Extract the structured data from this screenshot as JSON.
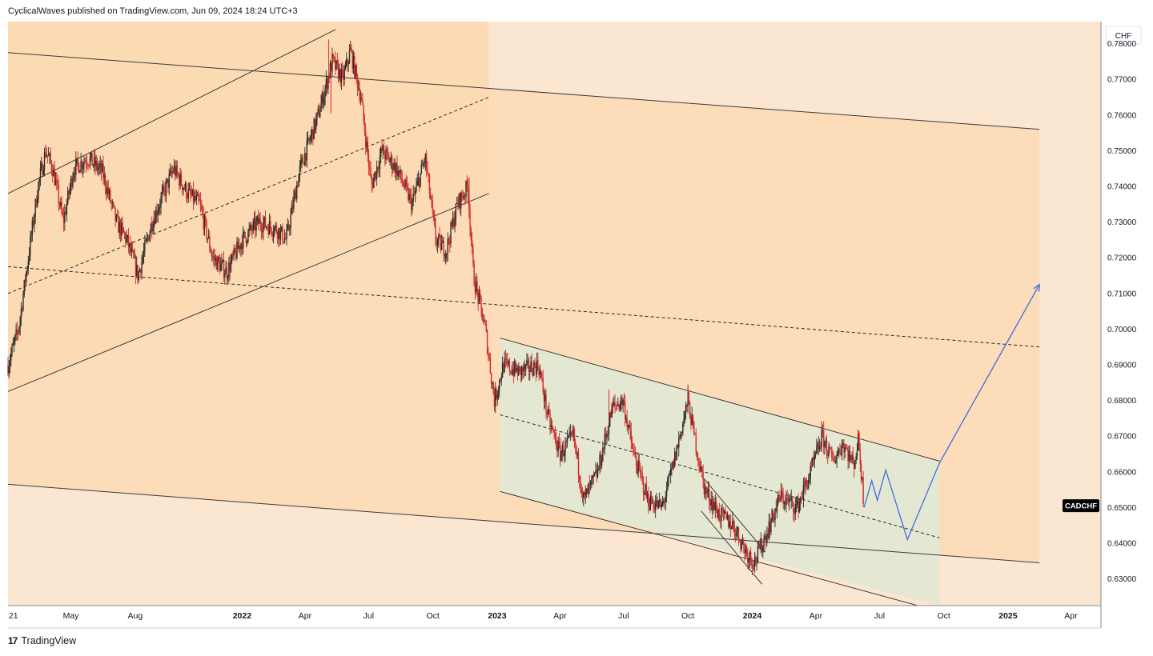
{
  "header": {
    "publisher_line": "CyclicalWaves published on TradingView.com, Jun 09, 2024 18:24 UTC+3"
  },
  "footer": {
    "brand": "TradingView",
    "logo_glyph": "17"
  },
  "colors": {
    "background": "#fbe6d1",
    "channel_fill": "#fcd8b0",
    "green_channel_fill": "#e3e7d2",
    "candle_up": "#26302a",
    "candle_down": "#d42a2a",
    "projection": "#3d6fe0",
    "label_bg": "#000000",
    "label_text": "#ffffff"
  },
  "chart_data": {
    "type": "candlestick",
    "symbol_label": "CADCHF",
    "currency_label": "CHF",
    "last_value": 0.6505,
    "y_range": [
      0.6225,
      0.7862
    ],
    "x_range": [
      "2021-01-31",
      "2025-05-14"
    ],
    "y_ticks": [
      "0.78000",
      "0.77000",
      "0.76000",
      "0.75000",
      "0.74000",
      "0.73000",
      "0.72000",
      "0.71000",
      "0.70000",
      "0.69000",
      "0.68000",
      "0.67000",
      "0.66000",
      "0.65000",
      "0.64000",
      "0.63000"
    ],
    "x_ticks": [
      {
        "label": "21",
        "date": "2021-02-01",
        "bold": false
      },
      {
        "label": "May",
        "date": "2021-05-01",
        "bold": false
      },
      {
        "label": "Aug",
        "date": "2021-08-01",
        "bold": false
      },
      {
        "label": "2022",
        "date": "2022-01-01",
        "bold": true
      },
      {
        "label": "Apr",
        "date": "2022-04-01",
        "bold": false
      },
      {
        "label": "Jul",
        "date": "2022-07-01",
        "bold": false
      },
      {
        "label": "Oct",
        "date": "2022-10-01",
        "bold": false
      },
      {
        "label": "2023",
        "date": "2023-01-01",
        "bold": true
      },
      {
        "label": "Apr",
        "date": "2023-04-01",
        "bold": false
      },
      {
        "label": "Jul",
        "date": "2023-07-01",
        "bold": false
      },
      {
        "label": "Oct",
        "date": "2023-10-01",
        "bold": false
      },
      {
        "label": "2024",
        "date": "2024-01-01",
        "bold": true
      },
      {
        "label": "Apr",
        "date": "2024-04-01",
        "bold": false
      },
      {
        "label": "Jul",
        "date": "2024-07-01",
        "bold": false
      },
      {
        "label": "Oct",
        "date": "2024-10-01",
        "bold": false
      },
      {
        "label": "2025",
        "date": "2025-01-01",
        "bold": true
      },
      {
        "label": "Apr",
        "date": "2025-04-01",
        "bold": false
      }
    ],
    "price_path": [
      [
        "2021-01-31",
        0.69
      ],
      [
        "2021-02-15",
        0.7
      ],
      [
        "2021-03-01",
        0.72
      ],
      [
        "2021-03-15",
        0.74
      ],
      [
        "2021-03-26",
        0.75
      ],
      [
        "2021-04-05",
        0.745
      ],
      [
        "2021-04-20",
        0.73
      ],
      [
        "2021-05-05",
        0.745
      ],
      [
        "2021-05-25",
        0.748
      ],
      [
        "2021-06-15",
        0.744
      ],
      [
        "2021-07-05",
        0.73
      ],
      [
        "2021-07-20",
        0.725
      ],
      [
        "2021-08-05",
        0.715
      ],
      [
        "2021-08-25",
        0.73
      ],
      [
        "2021-09-25",
        0.745
      ],
      [
        "2021-10-15",
        0.738
      ],
      [
        "2021-11-01",
        0.735
      ],
      [
        "2021-11-20",
        0.72
      ],
      [
        "2021-12-10",
        0.716
      ],
      [
        "2022-01-01",
        0.725
      ],
      [
        "2022-01-25",
        0.73
      ],
      [
        "2022-02-20",
        0.728
      ],
      [
        "2022-03-05",
        0.725
      ],
      [
        "2022-03-25",
        0.745
      ],
      [
        "2022-04-20",
        0.76
      ],
      [
        "2022-05-10",
        0.775
      ],
      [
        "2022-05-25",
        0.77
      ],
      [
        "2022-06-05",
        0.778
      ],
      [
        "2022-06-20",
        0.765
      ],
      [
        "2022-07-05",
        0.74
      ],
      [
        "2022-07-20",
        0.75
      ],
      [
        "2022-08-10",
        0.745
      ],
      [
        "2022-09-01",
        0.735
      ],
      [
        "2022-09-20",
        0.748
      ],
      [
        "2022-10-05",
        0.725
      ],
      [
        "2022-10-20",
        0.722
      ],
      [
        "2022-11-05",
        0.735
      ],
      [
        "2022-11-20",
        0.74
      ],
      [
        "2022-11-28",
        0.715
      ],
      [
        "2022-12-15",
        0.7
      ],
      [
        "2022-12-28",
        0.68
      ],
      [
        "2023-01-10",
        0.69
      ],
      [
        "2023-02-01",
        0.688
      ],
      [
        "2023-03-01",
        0.69
      ],
      [
        "2023-03-15",
        0.675
      ],
      [
        "2023-04-01",
        0.665
      ],
      [
        "2023-04-20",
        0.67
      ],
      [
        "2023-05-05",
        0.652
      ],
      [
        "2023-05-25",
        0.66
      ],
      [
        "2023-06-15",
        0.678
      ],
      [
        "2023-06-30",
        0.68
      ],
      [
        "2023-07-15",
        0.665
      ],
      [
        "2023-08-05",
        0.652
      ],
      [
        "2023-08-25",
        0.65
      ],
      [
        "2023-09-10",
        0.662
      ],
      [
        "2023-10-01",
        0.68
      ],
      [
        "2023-10-10",
        0.67
      ],
      [
        "2023-10-25",
        0.655
      ],
      [
        "2023-11-15",
        0.648
      ],
      [
        "2023-12-05",
        0.645
      ],
      [
        "2023-12-25",
        0.637
      ],
      [
        "2024-01-05",
        0.635
      ],
      [
        "2024-01-20",
        0.642
      ],
      [
        "2024-02-10",
        0.653
      ],
      [
        "2024-03-05",
        0.65
      ],
      [
        "2024-03-25",
        0.66
      ],
      [
        "2024-04-10",
        0.67
      ],
      [
        "2024-04-25",
        0.663
      ],
      [
        "2024-05-10",
        0.668
      ],
      [
        "2024-05-25",
        0.662
      ],
      [
        "2024-06-01",
        0.669
      ],
      [
        "2024-06-09",
        0.6505
      ]
    ],
    "wicks": [
      [
        "2022-05-05",
        0.7812
      ],
      [
        "2022-05-08",
        0.7605
      ],
      [
        "2022-06-05",
        0.78
      ],
      [
        "2022-11-22",
        0.7425
      ],
      [
        "2023-06-10",
        0.683
      ],
      [
        "2023-10-01",
        0.683
      ],
      [
        "2024-01-01",
        0.631
      ],
      [
        "2024-06-01",
        0.671
      ],
      [
        "2022-12-28",
        0.678
      ]
    ],
    "projection_path": [
      [
        "2024-06-09",
        0.65
      ],
      [
        "2024-06-20",
        0.6575
      ],
      [
        "2024-06-28",
        0.652
      ],
      [
        "2024-07-10",
        0.6605
      ],
      [
        "2024-08-10",
        0.641
      ],
      [
        "2024-09-25",
        0.6625
      ],
      [
        "2025-02-15",
        0.7125
      ]
    ],
    "drawings": {
      "upper_channel": {
        "upper": [
          [
            "2021-01-31",
            0.738
          ],
          [
            "2022-05-15",
            0.784
          ]
        ],
        "mid": [
          [
            "2021-01-31",
            0.71
          ],
          [
            "2022-12-20",
            0.765
          ]
        ],
        "lower": [
          [
            "2021-01-31",
            0.6825
          ],
          [
            "2022-12-20",
            0.738
          ]
        ],
        "fill_to": "2022-12-20"
      },
      "big_channel": {
        "upper": [
          [
            "2021-01-31",
            0.7775
          ],
          [
            "2025-02-15",
            0.756
          ]
        ],
        "mid": [
          [
            "2021-01-31",
            0.7175
          ],
          [
            "2025-02-15",
            0.695
          ]
        ],
        "lower": [
          [
            "2021-01-31",
            0.6565
          ],
          [
            "2025-02-15",
            0.6345
          ]
        ]
      },
      "down_channel": {
        "upper": [
          [
            "2023-01-05",
            0.6975
          ],
          [
            "2024-09-25",
            0.663
          ]
        ],
        "mid": [
          [
            "2023-01-05",
            0.676
          ],
          [
            "2024-09-25",
            0.6415
          ]
        ],
        "lower": [
          [
            "2023-01-05",
            0.6545
          ],
          [
            "2024-08-25",
            0.6225
          ]
        ],
        "fill_to": "2024-09-25"
      },
      "wedge": [
        [
          [
            "2023-10-20",
            0.659
          ],
          [
            "2024-01-20",
            0.6375
          ]
        ],
        [
          [
            "2023-10-20",
            0.649
          ],
          [
            "2024-01-15",
            0.6285
          ]
        ]
      ]
    }
  }
}
